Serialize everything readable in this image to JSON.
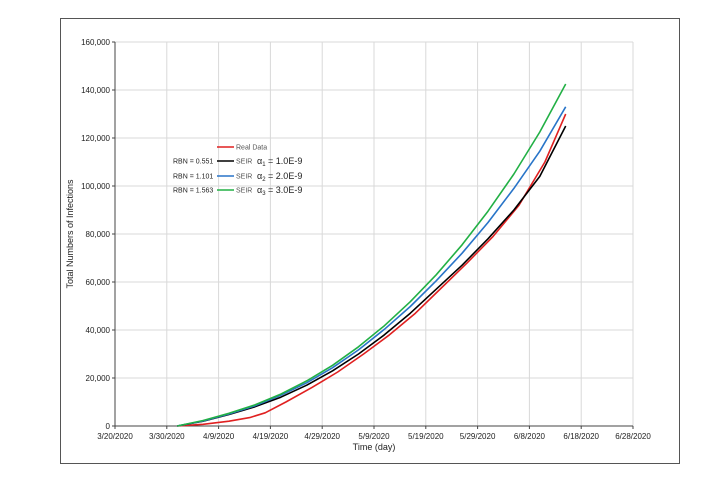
{
  "chart_data": {
    "type": "line",
    "xlabel": "Time (day)",
    "ylabel": "Total Numbers of Infections",
    "x_ticks": [
      "3/20/2020",
      "3/30/2020",
      "4/9/2020",
      "4/19/2020",
      "4/29/2020",
      "5/9/2020",
      "5/19/2020",
      "5/29/2020",
      "6/8/2020",
      "6/18/2020",
      "6/28/2020"
    ],
    "y_ticks": [
      "0",
      "20,000",
      "40,000",
      "60,000",
      "80,000",
      "100,000",
      "120,000",
      "140,000",
      "160,000"
    ],
    "xlim": [
      "2020-03-20",
      "2020-06-28"
    ],
    "ylim": [
      0,
      160000
    ],
    "grid": true,
    "legend_placement": "upper-left",
    "series": [
      {
        "name": "Real Data",
        "color": "#e02020",
        "points": [
          [
            "2020-04-01",
            0
          ],
          [
            "2020-04-06",
            700
          ],
          [
            "2020-04-11",
            2000
          ],
          [
            "2020-04-15",
            3500
          ],
          [
            "2020-04-18",
            5500
          ],
          [
            "2020-04-22",
            10000
          ],
          [
            "2020-04-27",
            16000
          ],
          [
            "2020-05-02",
            22500
          ],
          [
            "2020-05-07",
            30000
          ],
          [
            "2020-05-12",
            38000
          ],
          [
            "2020-05-17",
            47000
          ],
          [
            "2020-05-22",
            57500
          ],
          [
            "2020-05-27",
            68000
          ],
          [
            "2020-06-01",
            79000
          ],
          [
            "2020-06-06",
            92000
          ],
          [
            "2020-06-11",
            110000
          ],
          [
            "2020-06-15",
            130000
          ]
        ]
      },
      {
        "name": "SEIR",
        "rbn": "RBN = 0.551",
        "alpha_symbol": "α",
        "alpha_sub": "1",
        "alpha_value": " = 1.0E-9",
        "color": "#000000",
        "points": [
          [
            "2020-04-01",
            0
          ],
          [
            "2020-04-06",
            2000
          ],
          [
            "2020-04-11",
            4800
          ],
          [
            "2020-04-16",
            8000
          ],
          [
            "2020-04-21",
            12000
          ],
          [
            "2020-04-26",
            17000
          ],
          [
            "2020-05-01",
            23000
          ],
          [
            "2020-05-06",
            30000
          ],
          [
            "2020-05-11",
            38000
          ],
          [
            "2020-05-16",
            47000
          ],
          [
            "2020-05-21",
            57000
          ],
          [
            "2020-05-26",
            67000
          ],
          [
            "2020-05-31",
            78000
          ],
          [
            "2020-06-05",
            90000
          ],
          [
            "2020-06-10",
            104000
          ],
          [
            "2020-06-15",
            125000
          ]
        ]
      },
      {
        "name": "SEIR",
        "rbn": "RBN = 1.101",
        "alpha_symbol": "α",
        "alpha_sub": "2",
        "alpha_value": " = 2.0E-9",
        "color": "#2874c8",
        "points": [
          [
            "2020-04-01",
            0
          ],
          [
            "2020-04-06",
            2100
          ],
          [
            "2020-04-11",
            5000
          ],
          [
            "2020-04-16",
            8400
          ],
          [
            "2020-04-21",
            12800
          ],
          [
            "2020-04-26",
            18000
          ],
          [
            "2020-05-01",
            24300
          ],
          [
            "2020-05-06",
            31700
          ],
          [
            "2020-05-11",
            40300
          ],
          [
            "2020-05-16",
            49800
          ],
          [
            "2020-05-21",
            60500
          ],
          [
            "2020-05-26",
            72000
          ],
          [
            "2020-05-31",
            84800
          ],
          [
            "2020-06-05",
            99000
          ],
          [
            "2020-06-10",
            114500
          ],
          [
            "2020-06-15",
            133000
          ]
        ]
      },
      {
        "name": "SEIR",
        "rbn": "RBN = 1.563",
        "alpha_symbol": "α",
        "alpha_sub": "3",
        "alpha_value": " = 3.0E-9",
        "color": "#22b045",
        "points": [
          [
            "2020-04-01",
            0
          ],
          [
            "2020-04-06",
            2300
          ],
          [
            "2020-04-11",
            5300
          ],
          [
            "2020-04-16",
            8800
          ],
          [
            "2020-04-21",
            13300
          ],
          [
            "2020-04-26",
            18800
          ],
          [
            "2020-05-01",
            25300
          ],
          [
            "2020-05-06",
            33000
          ],
          [
            "2020-05-11",
            41800
          ],
          [
            "2020-05-16",
            51800
          ],
          [
            "2020-05-21",
            63000
          ],
          [
            "2020-05-26",
            75500
          ],
          [
            "2020-05-31",
            89500
          ],
          [
            "2020-06-05",
            105000
          ],
          [
            "2020-06-10",
            122500
          ],
          [
            "2020-06-15",
            142500
          ]
        ]
      }
    ]
  }
}
